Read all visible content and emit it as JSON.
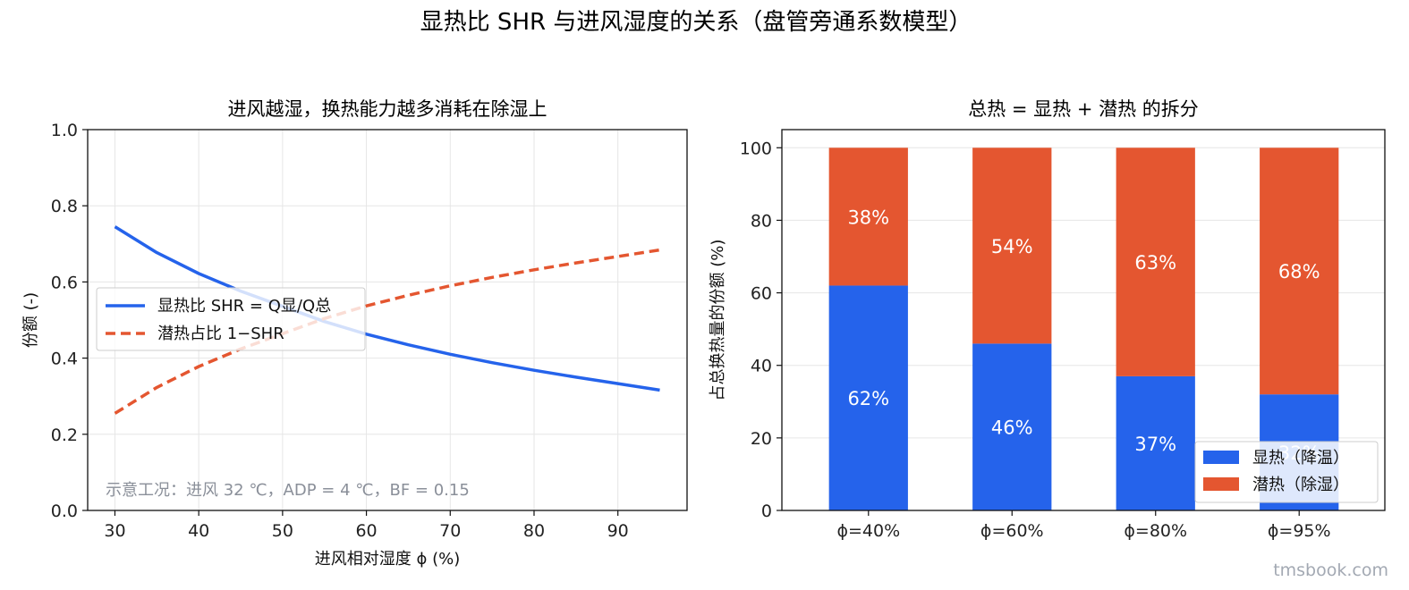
{
  "figure": {
    "suptitle": "显热比 SHR 与进风湿度的关系（盘管旁通系数模型）",
    "watermark": "tmsbook.com",
    "colors": {
      "sensible": "#2563eb",
      "latent": "#e45630",
      "grid": "#e6e6e6",
      "note": "#8a8f99"
    }
  },
  "chart_data": [
    {
      "type": "line",
      "title": "进风越湿，换热能力越多消耗在除湿上",
      "xlabel": "进风相对湿度 ϕ (%)",
      "ylabel": "份额 (-)",
      "xlim": [
        26.75,
        98.25
      ],
      "ylim": [
        0.0,
        1.0
      ],
      "xticks": [
        "30",
        "40",
        "50",
        "60",
        "70",
        "80",
        "90"
      ],
      "xtick_values": [
        30,
        40,
        50,
        60,
        70,
        80,
        90
      ],
      "yticks": [
        "0.0",
        "0.2",
        "0.4",
        "0.6",
        "0.8",
        "1.0"
      ],
      "ytick_values": [
        0.0,
        0.2,
        0.4,
        0.6,
        0.8,
        1.0
      ],
      "grid": true,
      "legend_position": "center-left",
      "annotation": "示意工况：进风 32 ℃，ADP = 4 ℃，BF = 0.15",
      "x": [
        30,
        35,
        40,
        45,
        50,
        55,
        60,
        65,
        70,
        75,
        80,
        85,
        90,
        95
      ],
      "series": [
        {
          "name": "显热比 SHR = Q显/Q总",
          "style": "solid",
          "values": [
            0.745,
            0.677,
            0.622,
            0.576,
            0.536,
            0.496,
            0.463,
            0.435,
            0.41,
            0.388,
            0.368,
            0.35,
            0.333,
            0.316
          ]
        },
        {
          "name": "潜热占比 1−SHR",
          "style": "dashed",
          "values": [
            0.255,
            0.323,
            0.378,
            0.424,
            0.464,
            0.504,
            0.537,
            0.565,
            0.59,
            0.612,
            0.632,
            0.65,
            0.667,
            0.684
          ]
        }
      ]
    },
    {
      "type": "bar",
      "stacked": true,
      "title": "总热 = 显热 + 潜热 的拆分",
      "xlabel": "",
      "ylabel": "占总换热量的份额 (%)",
      "ylim": [
        0,
        105
      ],
      "yticks": [
        "0",
        "20",
        "40",
        "60",
        "80",
        "100"
      ],
      "ytick_values": [
        0,
        20,
        40,
        60,
        80,
        100
      ],
      "grid": true,
      "legend_position": "bottom-right",
      "categories": [
        "ϕ=40%",
        "ϕ=60%",
        "ϕ=80%",
        "ϕ=95%"
      ],
      "series": [
        {
          "name": "显热（降温）",
          "values": [
            62,
            46,
            37,
            32
          ],
          "labels": [
            "62%",
            "46%",
            "37%",
            "32%"
          ]
        },
        {
          "name": "潜热（除湿）",
          "values": [
            38,
            54,
            63,
            68
          ],
          "labels": [
            "38%",
            "54%",
            "63%",
            "68%"
          ]
        }
      ]
    }
  ]
}
